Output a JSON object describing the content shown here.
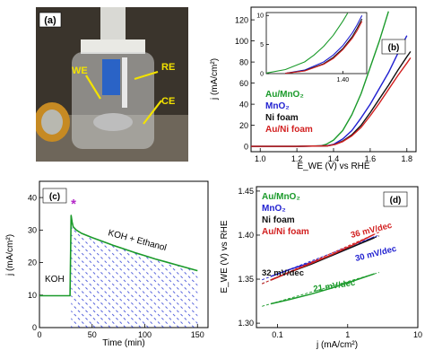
{
  "panels": {
    "a": {
      "label": "(a)",
      "callouts": [
        "WE",
        "RE",
        "CE"
      ]
    },
    "b": {
      "label": "(b)"
    },
    "c": {
      "label": "(c)",
      "marker": "*"
    },
    "d": {
      "label": "(d)"
    }
  },
  "colors": {
    "au_mno2": "#1a9a2a",
    "mno2": "#1f1fd0",
    "ni_foam": "#111111",
    "au_ni_foam": "#d21f1f",
    "callout": "#f2e200"
  },
  "chart_data": [
    {
      "panel": "b",
      "type": "line",
      "xlabel": "E_WE (V) vs RHE",
      "ylabel": "j (mA/cm²)",
      "xlim": [
        0.95,
        1.85
      ],
      "ylim": [
        -5,
        132
      ],
      "xticks": [
        "1.0",
        "1.2",
        "1.4",
        "1.6",
        "1.8"
      ],
      "yticks": [
        "0",
        "20",
        "40",
        "60",
        "80",
        "100",
        "120"
      ],
      "legend": [
        "Au/MnO₂",
        "MnO₂",
        "Ni foam",
        "Au/Ni foam"
      ],
      "legend_position": "left",
      "series": [
        {
          "name": "Au/MnO₂",
          "x": [
            0.95,
            1.2,
            1.33,
            1.36,
            1.4,
            1.45,
            1.5,
            1.55,
            1.6,
            1.65,
            1.7
          ],
          "y": [
            0,
            0,
            0.5,
            2,
            6,
            15,
            30,
            50,
            75,
            100,
            128
          ]
        },
        {
          "name": "MnO₂",
          "x": [
            0.95,
            1.2,
            1.36,
            1.4,
            1.45,
            1.5,
            1.55,
            1.6,
            1.65,
            1.7,
            1.75,
            1.8
          ],
          "y": [
            0,
            0,
            0.5,
            2,
            7,
            15,
            27,
            40,
            55,
            70,
            88,
            105
          ]
        },
        {
          "name": "Ni foam",
          "x": [
            0.95,
            1.2,
            1.37,
            1.41,
            1.45,
            1.5,
            1.55,
            1.6,
            1.65,
            1.7,
            1.75,
            1.8,
            1.82
          ],
          "y": [
            0,
            0,
            0.5,
            2,
            5,
            11,
            20,
            32,
            45,
            58,
            72,
            85,
            90
          ]
        },
        {
          "name": "Au/Ni foam",
          "x": [
            0.95,
            1.2,
            1.37,
            1.41,
            1.45,
            1.5,
            1.55,
            1.6,
            1.65,
            1.7,
            1.75,
            1.8,
            1.82
          ],
          "y": [
            0,
            0,
            0.5,
            2,
            4.5,
            10,
            18,
            29,
            41,
            54,
            67,
            79,
            84
          ]
        }
      ],
      "inset": {
        "xlim": [
          1.32,
          1.425
        ],
        "ylim": [
          0,
          10.5
        ],
        "xticks": [
          "1.40"
        ],
        "yticks": [
          "0",
          "5",
          "10"
        ],
        "series": [
          {
            "name": "Au/MnO₂",
            "x": [
              1.32,
              1.34,
              1.36,
              1.37,
              1.38,
              1.39,
              1.4,
              1.405
            ],
            "y": [
              0.1,
              0.7,
              2.0,
              3.2,
              4.7,
              6.6,
              9.0,
              10.4
            ]
          },
          {
            "name": "MnO₂",
            "x": [
              1.34,
              1.36,
              1.38,
              1.39,
              1.4,
              1.41,
              1.415,
              1.42
            ],
            "y": [
              0.05,
              0.6,
              2.0,
              3.2,
              4.8,
              7.0,
              8.4,
              10.0
            ]
          },
          {
            "name": "Ni foam",
            "x": [
              1.34,
              1.36,
              1.38,
              1.39,
              1.4,
              1.41,
              1.415,
              1.42
            ],
            "y": [
              0.05,
              0.5,
              1.7,
              2.8,
              4.3,
              6.4,
              7.8,
              9.4
            ]
          },
          {
            "name": "Au/Ni foam",
            "x": [
              1.34,
              1.36,
              1.38,
              1.39,
              1.4,
              1.41,
              1.415,
              1.42
            ],
            "y": [
              0.05,
              0.45,
              1.6,
              2.6,
              4.1,
              6.1,
              7.4,
              9.0
            ]
          }
        ]
      }
    },
    {
      "panel": "c",
      "type": "line",
      "xlabel": "Time (min)",
      "ylabel": "j (mA/cm²)",
      "xlim": [
        0,
        160
      ],
      "ylim": [
        0,
        45
      ],
      "xticks": [
        "0",
        "50",
        "100",
        "150"
      ],
      "yticks": [
        "0",
        "10",
        "20",
        "30",
        "40"
      ],
      "annotations": [
        "KOH",
        "KOH + Ethanol"
      ],
      "series": [
        {
          "name": "current",
          "x": [
            0,
            10,
            20,
            29,
            30,
            31,
            32,
            35,
            40,
            50,
            60,
            70,
            80,
            90,
            100,
            110,
            120,
            130,
            140,
            150
          ],
          "y": [
            9.8,
            9.8,
            9.8,
            9.8,
            34.5,
            32.5,
            31.0,
            30.0,
            29.0,
            27.7,
            26.5,
            25.3,
            24.2,
            23.1,
            22.1,
            21.1,
            20.2,
            19.3,
            18.4,
            17.5
          ]
        }
      ]
    },
    {
      "panel": "d",
      "type": "line",
      "xlabel": "j (mA/cm²)",
      "ylabel": "E_WE (V) vs RHE",
      "xscale": "log",
      "xlim": [
        0.05,
        10
      ],
      "ylim": [
        1.295,
        1.455
      ],
      "xticks": [
        "0.1",
        "1",
        "10"
      ],
      "yticks": [
        "1.30",
        "1.35",
        "1.40",
        "1.45"
      ],
      "legend": [
        "Au/MnO₂",
        "MnO₂",
        "Ni foam",
        "Au/Ni foam"
      ],
      "legend_position": "top-left",
      "slope_labels": [
        "36 mV/dec",
        "30 mV/dec",
        "32 mV/dec",
        "21 mV/dec"
      ],
      "series": [
        {
          "name": "Au/MnO₂",
          "x": [
            0.08,
            0.15,
            0.3,
            0.6,
            1.2,
            2.4
          ],
          "y": [
            1.322,
            1.327,
            1.333,
            1.34,
            1.348,
            1.356
          ]
        },
        {
          "name": "MnO₂",
          "x": [
            0.08,
            0.15,
            0.3,
            0.6,
            1.2,
            2.4
          ],
          "y": [
            1.353,
            1.361,
            1.369,
            1.377,
            1.387,
            1.398
          ]
        },
        {
          "name": "Ni foam",
          "x": [
            0.08,
            0.15,
            0.3,
            0.6,
            1.2,
            2.4
          ],
          "y": [
            1.349,
            1.358,
            1.367,
            1.377,
            1.387,
            1.397
          ]
        },
        {
          "name": "Au/Ni foam",
          "x": [
            0.08,
            0.15,
            0.3,
            0.6,
            1.2,
            2.4
          ],
          "y": [
            1.349,
            1.358,
            1.368,
            1.378,
            1.389,
            1.401
          ]
        }
      ]
    }
  ]
}
